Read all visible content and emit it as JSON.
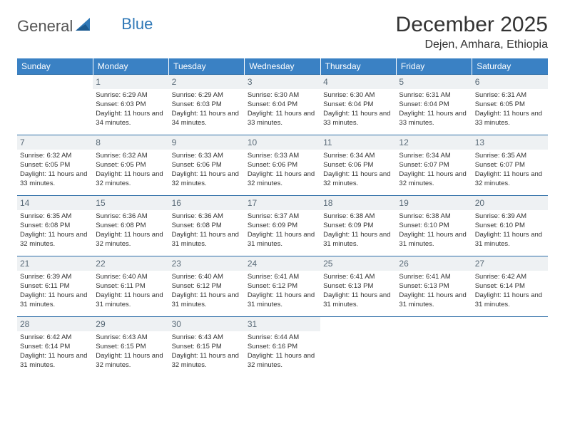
{
  "brand": {
    "part1": "General",
    "part2": "Blue"
  },
  "title": "December 2025",
  "location": "Dejen, Amhara, Ethiopia",
  "daysOfWeek": [
    "Sunday",
    "Monday",
    "Tuesday",
    "Wednesday",
    "Thursday",
    "Friday",
    "Saturday"
  ],
  "colors": {
    "header_bg": "#3a81c4",
    "header_text": "#ffffff",
    "daynum_bg": "#eef1f3",
    "daynum_text": "#5a6b78",
    "row_border": "#2f6fa8",
    "body_text": "#333333",
    "brand_accent": "#2f78b7"
  },
  "weeks": [
    [
      null,
      {
        "n": "1",
        "sr": "6:29 AM",
        "ss": "6:03 PM",
        "dl": "11 hours and 34 minutes."
      },
      {
        "n": "2",
        "sr": "6:29 AM",
        "ss": "6:03 PM",
        "dl": "11 hours and 34 minutes."
      },
      {
        "n": "3",
        "sr": "6:30 AM",
        "ss": "6:04 PM",
        "dl": "11 hours and 33 minutes."
      },
      {
        "n": "4",
        "sr": "6:30 AM",
        "ss": "6:04 PM",
        "dl": "11 hours and 33 minutes."
      },
      {
        "n": "5",
        "sr": "6:31 AM",
        "ss": "6:04 PM",
        "dl": "11 hours and 33 minutes."
      },
      {
        "n": "6",
        "sr": "6:31 AM",
        "ss": "6:05 PM",
        "dl": "11 hours and 33 minutes."
      }
    ],
    [
      {
        "n": "7",
        "sr": "6:32 AM",
        "ss": "6:05 PM",
        "dl": "11 hours and 33 minutes."
      },
      {
        "n": "8",
        "sr": "6:32 AM",
        "ss": "6:05 PM",
        "dl": "11 hours and 32 minutes."
      },
      {
        "n": "9",
        "sr": "6:33 AM",
        "ss": "6:06 PM",
        "dl": "11 hours and 32 minutes."
      },
      {
        "n": "10",
        "sr": "6:33 AM",
        "ss": "6:06 PM",
        "dl": "11 hours and 32 minutes."
      },
      {
        "n": "11",
        "sr": "6:34 AM",
        "ss": "6:06 PM",
        "dl": "11 hours and 32 minutes."
      },
      {
        "n": "12",
        "sr": "6:34 AM",
        "ss": "6:07 PM",
        "dl": "11 hours and 32 minutes."
      },
      {
        "n": "13",
        "sr": "6:35 AM",
        "ss": "6:07 PM",
        "dl": "11 hours and 32 minutes."
      }
    ],
    [
      {
        "n": "14",
        "sr": "6:35 AM",
        "ss": "6:08 PM",
        "dl": "11 hours and 32 minutes."
      },
      {
        "n": "15",
        "sr": "6:36 AM",
        "ss": "6:08 PM",
        "dl": "11 hours and 32 minutes."
      },
      {
        "n": "16",
        "sr": "6:36 AM",
        "ss": "6:08 PM",
        "dl": "11 hours and 31 minutes."
      },
      {
        "n": "17",
        "sr": "6:37 AM",
        "ss": "6:09 PM",
        "dl": "11 hours and 31 minutes."
      },
      {
        "n": "18",
        "sr": "6:38 AM",
        "ss": "6:09 PM",
        "dl": "11 hours and 31 minutes."
      },
      {
        "n": "19",
        "sr": "6:38 AM",
        "ss": "6:10 PM",
        "dl": "11 hours and 31 minutes."
      },
      {
        "n": "20",
        "sr": "6:39 AM",
        "ss": "6:10 PM",
        "dl": "11 hours and 31 minutes."
      }
    ],
    [
      {
        "n": "21",
        "sr": "6:39 AM",
        "ss": "6:11 PM",
        "dl": "11 hours and 31 minutes."
      },
      {
        "n": "22",
        "sr": "6:40 AM",
        "ss": "6:11 PM",
        "dl": "11 hours and 31 minutes."
      },
      {
        "n": "23",
        "sr": "6:40 AM",
        "ss": "6:12 PM",
        "dl": "11 hours and 31 minutes."
      },
      {
        "n": "24",
        "sr": "6:41 AM",
        "ss": "6:12 PM",
        "dl": "11 hours and 31 minutes."
      },
      {
        "n": "25",
        "sr": "6:41 AM",
        "ss": "6:13 PM",
        "dl": "11 hours and 31 minutes."
      },
      {
        "n": "26",
        "sr": "6:41 AM",
        "ss": "6:13 PM",
        "dl": "11 hours and 31 minutes."
      },
      {
        "n": "27",
        "sr": "6:42 AM",
        "ss": "6:14 PM",
        "dl": "11 hours and 31 minutes."
      }
    ],
    [
      {
        "n": "28",
        "sr": "6:42 AM",
        "ss": "6:14 PM",
        "dl": "11 hours and 31 minutes."
      },
      {
        "n": "29",
        "sr": "6:43 AM",
        "ss": "6:15 PM",
        "dl": "11 hours and 32 minutes."
      },
      {
        "n": "30",
        "sr": "6:43 AM",
        "ss": "6:15 PM",
        "dl": "11 hours and 32 minutes."
      },
      {
        "n": "31",
        "sr": "6:44 AM",
        "ss": "6:16 PM",
        "dl": "11 hours and 32 minutes."
      },
      null,
      null,
      null
    ]
  ],
  "labels": {
    "sunrise": "Sunrise:",
    "sunset": "Sunset:",
    "daylight": "Daylight:"
  }
}
